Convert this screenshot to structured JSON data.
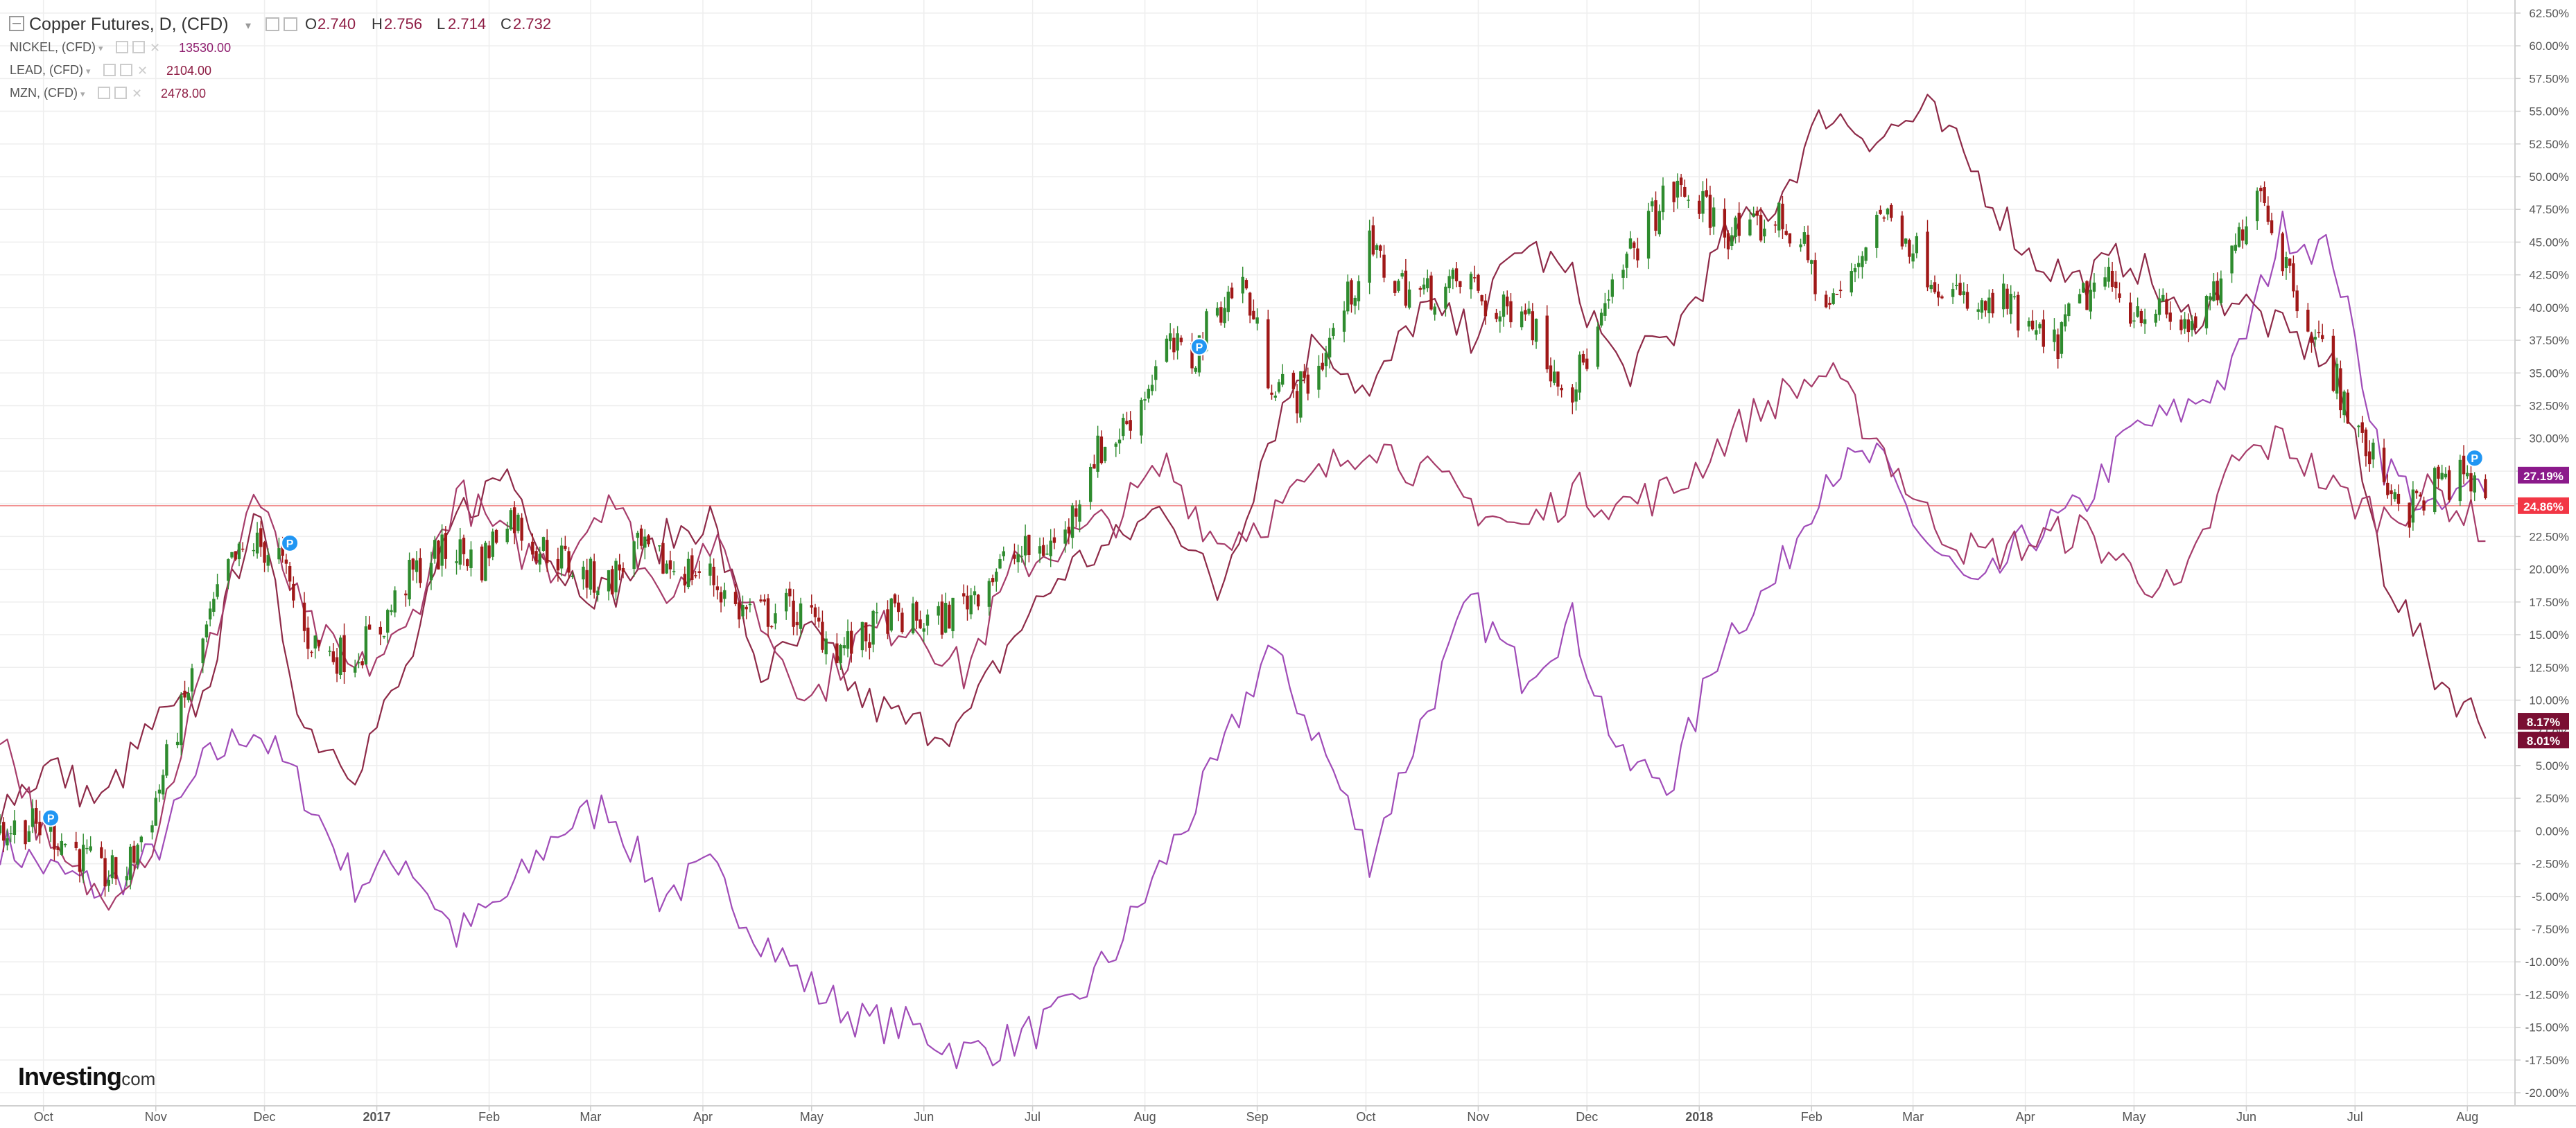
{
  "legend": {
    "main": {
      "symbol": "Copper Futures, D, (CFD)",
      "o_label": "O",
      "o_value": "2.740",
      "h_label": "H",
      "h_value": "2.756",
      "l_label": "L",
      "l_value": "2.714",
      "c_label": "C",
      "c_value": "2.732"
    },
    "overlays": [
      {
        "symbol": "NICKEL, (CFD)",
        "value": "13530.00",
        "color": "#8e1d6e"
      },
      {
        "symbol": "LEAD, (CFD)",
        "value": "2104.00",
        "color": "#8e1d44"
      },
      {
        "symbol": "MZN, (CFD)",
        "value": "2478.00",
        "color": "#8e1d44"
      }
    ]
  },
  "branding": {
    "logo_text": "Investing",
    "logo_suffix": ".com"
  },
  "colors": {
    "up_candle": "#2e8b2e",
    "down_candle": "#a01818",
    "line_nickel": "#a04cb8",
    "line_lead": "#8e2a48",
    "line_mzn": "#a63c6a",
    "badge_purple": "#8b1a8b",
    "badge_red": "#f23645",
    "badge_dark": "#7a0f33",
    "price_line": "#f08080",
    "grid": "#eeeeee",
    "event_marker": "#2196f3"
  },
  "price_badges": [
    {
      "value": "27.19%",
      "y_pct": 27.19,
      "color": "#8b1a8b"
    },
    {
      "value": "24.86%",
      "y_pct": 24.86,
      "color": "#f23645"
    },
    {
      "value": "8.17%",
      "y_pct": 8.17,
      "color": "#7a0f33"
    },
    {
      "value": "8.01%",
      "y_pct": 8.01,
      "color": "#7a0f33"
    }
  ],
  "event_markers": [
    {
      "label": "P",
      "date": "2016-10-03",
      "y": 1.0
    },
    {
      "label": "P",
      "date": "2016-12-08",
      "y": 22.0
    },
    {
      "label": "P",
      "date": "2017-08-16",
      "y": 37.0
    },
    {
      "label": "P",
      "date": "2018-08-03",
      "y": 28.5
    }
  ],
  "chart_data": {
    "type": "line",
    "y_axis_unit": "percent",
    "ylim": [
      -21.0,
      63.5
    ],
    "xlim": [
      "2016-09-19",
      "2018-08-13"
    ],
    "grid": true,
    "x_ticks": [
      {
        "label": "Oct",
        "date": "2016-10-01",
        "bold": false
      },
      {
        "label": "Nov",
        "date": "2016-11-01",
        "bold": false
      },
      {
        "label": "Dec",
        "date": "2016-12-01",
        "bold": false
      },
      {
        "label": "2017",
        "date": "2017-01-01",
        "bold": true
      },
      {
        "label": "Feb",
        "date": "2017-02-01",
        "bold": false
      },
      {
        "label": "Mar",
        "date": "2017-03-01",
        "bold": false
      },
      {
        "label": "Apr",
        "date": "2017-04-01",
        "bold": false
      },
      {
        "label": "May",
        "date": "2017-05-01",
        "bold": false
      },
      {
        "label": "Jun",
        "date": "2017-06-01",
        "bold": false
      },
      {
        "label": "Jul",
        "date": "2017-07-01",
        "bold": false
      },
      {
        "label": "Aug",
        "date": "2017-08-01",
        "bold": false
      },
      {
        "label": "Sep",
        "date": "2017-09-01",
        "bold": false
      },
      {
        "label": "Oct",
        "date": "2017-10-01",
        "bold": false
      },
      {
        "label": "Nov",
        "date": "2017-11-01",
        "bold": false
      },
      {
        "label": "Dec",
        "date": "2017-12-01",
        "bold": false
      },
      {
        "label": "2018",
        "date": "2018-01-01",
        "bold": true
      },
      {
        "label": "Feb",
        "date": "2018-02-01",
        "bold": false
      },
      {
        "label": "Mar",
        "date": "2018-03-01",
        "bold": false
      },
      {
        "label": "Apr",
        "date": "2018-04-01",
        "bold": false
      },
      {
        "label": "May",
        "date": "2018-05-01",
        "bold": false
      },
      {
        "label": "Jun",
        "date": "2018-06-01",
        "bold": false
      },
      {
        "label": "Jul",
        "date": "2018-07-01",
        "bold": false
      },
      {
        "label": "Aug",
        "date": "2018-08-01",
        "bold": false
      }
    ],
    "y_ticks": [
      62.5,
      60.0,
      57.5,
      55.0,
      52.5,
      50.0,
      47.5,
      45.0,
      42.5,
      40.0,
      37.5,
      35.0,
      32.5,
      30.0,
      27.5,
      25.0,
      22.5,
      20.0,
      17.5,
      15.0,
      12.5,
      10.0,
      7.5,
      5.0,
      2.5,
      0.0,
      -2.5,
      -5.0,
      -7.5,
      -10.0,
      -12.5,
      -15.0,
      -17.5,
      -20.0
    ],
    "y_tick_labels": [
      "62.50%",
      "60.00%",
      "57.50%",
      "55.00%",
      "52.50%",
      "50.00%",
      "47.50%",
      "45.00%",
      "42.50%",
      "40.00%",
      "37.50%",
      "35.00%",
      "32.50%",
      "30.00%",
      "27.50%",
      "25.00%",
      "22.50%",
      "20.00%",
      "17.50%",
      "15.00%",
      "12.50%",
      "10.00%",
      "7.50%",
      "5.00%",
      "2.50%",
      "0.00%",
      "-2.50%",
      "-5.00%",
      "-7.50%",
      "-10.00%",
      "-12.50%",
      "-15.00%",
      "-17.50%",
      "-20.00%"
    ],
    "series": [
      {
        "name": "Copper Futures, D, (CFD)",
        "kind": "candle_path",
        "x": [
          "2016-09-19",
          "2016-09-26",
          "2016-10-03",
          "2016-10-10",
          "2016-10-17",
          "2016-10-24",
          "2016-10-31",
          "2016-11-07",
          "2016-11-14",
          "2016-11-21",
          "2016-11-28",
          "2016-12-05",
          "2016-12-12",
          "2016-12-19",
          "2016-12-26",
          "2017-01-02",
          "2017-01-09",
          "2017-01-16",
          "2017-01-23",
          "2017-01-30",
          "2017-02-06",
          "2017-02-13",
          "2017-02-20",
          "2017-02-27",
          "2017-03-06",
          "2017-03-13",
          "2017-03-20",
          "2017-03-27",
          "2017-04-03",
          "2017-04-10",
          "2017-04-17",
          "2017-04-24",
          "2017-05-01",
          "2017-05-08",
          "2017-05-15",
          "2017-05-22",
          "2017-05-29",
          "2017-06-05",
          "2017-06-12",
          "2017-06-19",
          "2017-06-26",
          "2017-07-03",
          "2017-07-10",
          "2017-07-17",
          "2017-07-24",
          "2017-07-31",
          "2017-08-07",
          "2017-08-14",
          "2017-08-21",
          "2017-08-28",
          "2017-09-04",
          "2017-09-11",
          "2017-09-18",
          "2017-09-25",
          "2017-10-02",
          "2017-10-09",
          "2017-10-16",
          "2017-10-23",
          "2017-10-30",
          "2017-11-06",
          "2017-11-13",
          "2017-11-20",
          "2017-11-27",
          "2017-12-04",
          "2017-12-11",
          "2017-12-18",
          "2017-12-25",
          "2018-01-01",
          "2018-01-08",
          "2018-01-15",
          "2018-01-22",
          "2018-01-29",
          "2018-02-05",
          "2018-02-12",
          "2018-02-19",
          "2018-02-26",
          "2018-03-05",
          "2018-03-12",
          "2018-03-19",
          "2018-03-26",
          "2018-04-02",
          "2018-04-09",
          "2018-04-16",
          "2018-04-23",
          "2018-04-30",
          "2018-05-07",
          "2018-05-14",
          "2018-05-21",
          "2018-05-28",
          "2018-06-04",
          "2018-06-11",
          "2018-06-18",
          "2018-06-25",
          "2018-07-02",
          "2018-07-09",
          "2018-07-16",
          "2018-07-23",
          "2018-07-30",
          "2018-08-06"
        ],
        "values": [
          0.0,
          0.5,
          0.0,
          -1.5,
          -3.5,
          -3.0,
          1.5,
          8.0,
          14.5,
          20.0,
          22.0,
          21.0,
          15.0,
          13.5,
          13.5,
          15.5,
          19.0,
          21.0,
          21.5,
          20.5,
          24.5,
          22.0,
          21.0,
          19.5,
          19.0,
          21.5,
          20.5,
          20.0,
          19.5,
          17.0,
          16.5,
          17.0,
          16.0,
          14.0,
          14.5,
          16.5,
          16.0,
          16.0,
          17.5,
          19.5,
          21.0,
          21.5,
          22.5,
          28.5,
          30.0,
          33.0,
          37.0,
          36.0,
          40.0,
          42.0,
          35.0,
          33.0,
          35.5,
          40.0,
          44.5,
          42.0,
          41.0,
          41.5,
          42.0,
          39.0,
          41.0,
          36.0,
          34.0,
          38.0,
          43.0,
          46.5,
          49.0,
          48.0,
          46.0,
          45.5,
          47.0,
          45.0,
          40.0,
          42.0,
          47.5,
          46.0,
          43.0,
          41.0,
          39.5,
          40.5,
          38.0,
          37.0,
          40.5,
          42.0,
          40.0,
          40.0,
          38.5,
          39.5,
          43.5,
          50.0,
          44.0,
          39.0,
          35.0,
          30.0,
          27.0,
          24.5,
          26.5,
          27.0,
          25.5
        ]
      },
      {
        "name": "NICKEL, (CFD)",
        "kind": "line",
        "color": "#a04cb8",
        "x": [
          "2016-09-19",
          "2016-10-03",
          "2016-10-17",
          "2016-10-31",
          "2016-11-14",
          "2016-11-28",
          "2016-12-12",
          "2016-12-26",
          "2017-01-09",
          "2017-01-23",
          "2017-02-06",
          "2017-02-20",
          "2017-03-06",
          "2017-03-20",
          "2017-04-03",
          "2017-04-17",
          "2017-05-01",
          "2017-05-15",
          "2017-05-29",
          "2017-06-12",
          "2017-06-26",
          "2017-07-10",
          "2017-07-24",
          "2017-08-07",
          "2017-08-21",
          "2017-09-04",
          "2017-09-18",
          "2017-10-02",
          "2017-10-16",
          "2017-10-30",
          "2017-11-13",
          "2017-11-27",
          "2017-12-11",
          "2017-12-25",
          "2018-01-08",
          "2018-01-22",
          "2018-02-05",
          "2018-02-19",
          "2018-03-05",
          "2018-03-19",
          "2018-04-02",
          "2018-04-16",
          "2018-04-30",
          "2018-05-14",
          "2018-05-28",
          "2018-06-11",
          "2018-06-25",
          "2018-07-09",
          "2018-07-23",
          "2018-08-06"
        ],
        "values": [
          -1.0,
          -3.0,
          -4.5,
          -2.0,
          5.0,
          8.0,
          3.0,
          -4.0,
          -2.0,
          -8.0,
          -5.0,
          0.0,
          2.0,
          -5.0,
          -3.0,
          -8.0,
          -12.0,
          -14.5,
          -15.0,
          -17.0,
          -16.0,
          -14.0,
          -9.0,
          -2.0,
          5.0,
          14.0,
          7.0,
          -2.0,
          8.0,
          17.5,
          12.0,
          16.0,
          5.0,
          4.0,
          15.0,
          19.0,
          27.5,
          28.5,
          22.0,
          18.0,
          22.5,
          24.5,
          30.5,
          32.0,
          35.0,
          46.0,
          44.0,
          28.0,
          24.0,
          27.0
        ]
      },
      {
        "name": "LEAD, (CFD)",
        "kind": "line",
        "color": "#8e2a48",
        "x": [
          "2016-09-19",
          "2016-10-03",
          "2016-10-17",
          "2016-10-31",
          "2016-11-14",
          "2016-11-28",
          "2016-12-12",
          "2016-12-26",
          "2017-01-09",
          "2017-01-23",
          "2017-02-06",
          "2017-02-20",
          "2017-03-06",
          "2017-03-20",
          "2017-04-03",
          "2017-04-17",
          "2017-05-01",
          "2017-05-15",
          "2017-05-29",
          "2017-06-12",
          "2017-06-26",
          "2017-07-10",
          "2017-07-24",
          "2017-08-07",
          "2017-08-21",
          "2017-09-04",
          "2017-09-18",
          "2017-10-02",
          "2017-10-16",
          "2017-10-30",
          "2017-11-13",
          "2017-11-27",
          "2017-12-11",
          "2017-12-25",
          "2018-01-08",
          "2018-01-22",
          "2018-02-05",
          "2018-02-19",
          "2018-03-05",
          "2018-03-19",
          "2018-04-02",
          "2018-04-16",
          "2018-04-30",
          "2018-05-14",
          "2018-05-28",
          "2018-06-11",
          "2018-06-25",
          "2018-07-09",
          "2018-07-23",
          "2018-08-06"
        ],
        "values": [
          2.0,
          5.0,
          2.0,
          8.0,
          10.0,
          25.0,
          8.0,
          5.0,
          12.0,
          24.0,
          27.5,
          20.0,
          18.0,
          22.0,
          24.0,
          12.0,
          15.0,
          10.0,
          8.0,
          8.0,
          15.0,
          20.0,
          22.0,
          25.0,
          18.0,
          30.0,
          38.0,
          33.0,
          40.0,
          38.0,
          45.0,
          42.0,
          35.0,
          38.0,
          45.0,
          48.0,
          55.0,
          53.0,
          55.0,
          50.0,
          44.0,
          42.0,
          44.0,
          39.0,
          41.0,
          38.0,
          36.0,
          20.0,
          12.0,
          8.0
        ]
      },
      {
        "name": "MZN, (CFD)",
        "kind": "line",
        "color": "#a63c6a",
        "x": [
          "2016-09-19",
          "2016-10-03",
          "2016-10-17",
          "2016-10-31",
          "2016-11-14",
          "2016-11-28",
          "2016-12-12",
          "2016-12-26",
          "2017-01-09",
          "2017-01-23",
          "2017-02-06",
          "2017-02-20",
          "2017-03-06",
          "2017-03-20",
          "2017-04-03",
          "2017-04-17",
          "2017-05-01",
          "2017-05-15",
          "2017-05-29",
          "2017-06-12",
          "2017-06-26",
          "2017-07-10",
          "2017-07-24",
          "2017-08-07",
          "2017-08-21",
          "2017-09-04",
          "2017-09-18",
          "2017-10-02",
          "2017-10-16",
          "2017-10-30",
          "2017-11-13",
          "2017-11-27",
          "2017-12-11",
          "2017-12-25",
          "2018-01-08",
          "2018-01-22",
          "2018-02-05",
          "2018-02-19",
          "2018-03-05",
          "2018-03-19",
          "2018-04-02",
          "2018-04-16",
          "2018-04-30",
          "2018-05-14",
          "2018-05-28",
          "2018-06-11",
          "2018-06-25",
          "2018-07-09",
          "2018-07-23",
          "2018-08-06"
        ],
        "values": [
          8.0,
          -2.0,
          -5.0,
          -1.0,
          12.0,
          26.0,
          16.0,
          12.0,
          15.0,
          26.0,
          22.0,
          20.0,
          26.0,
          18.0,
          22.0,
          16.0,
          10.0,
          15.0,
          16.0,
          12.0,
          20.0,
          22.0,
          24.0,
          28.0,
          22.0,
          24.0,
          27.0,
          30.0,
          27.5,
          25.0,
          23.0,
          26.0,
          25.0,
          26.0,
          30.0,
          33.0,
          35.0,
          30.0,
          24.0,
          21.0,
          22.0,
          23.0,
          20.0,
          18.0,
          28.0,
          30.0,
          26.0,
          24.0,
          26.0,
          23.0
        ]
      }
    ]
  }
}
